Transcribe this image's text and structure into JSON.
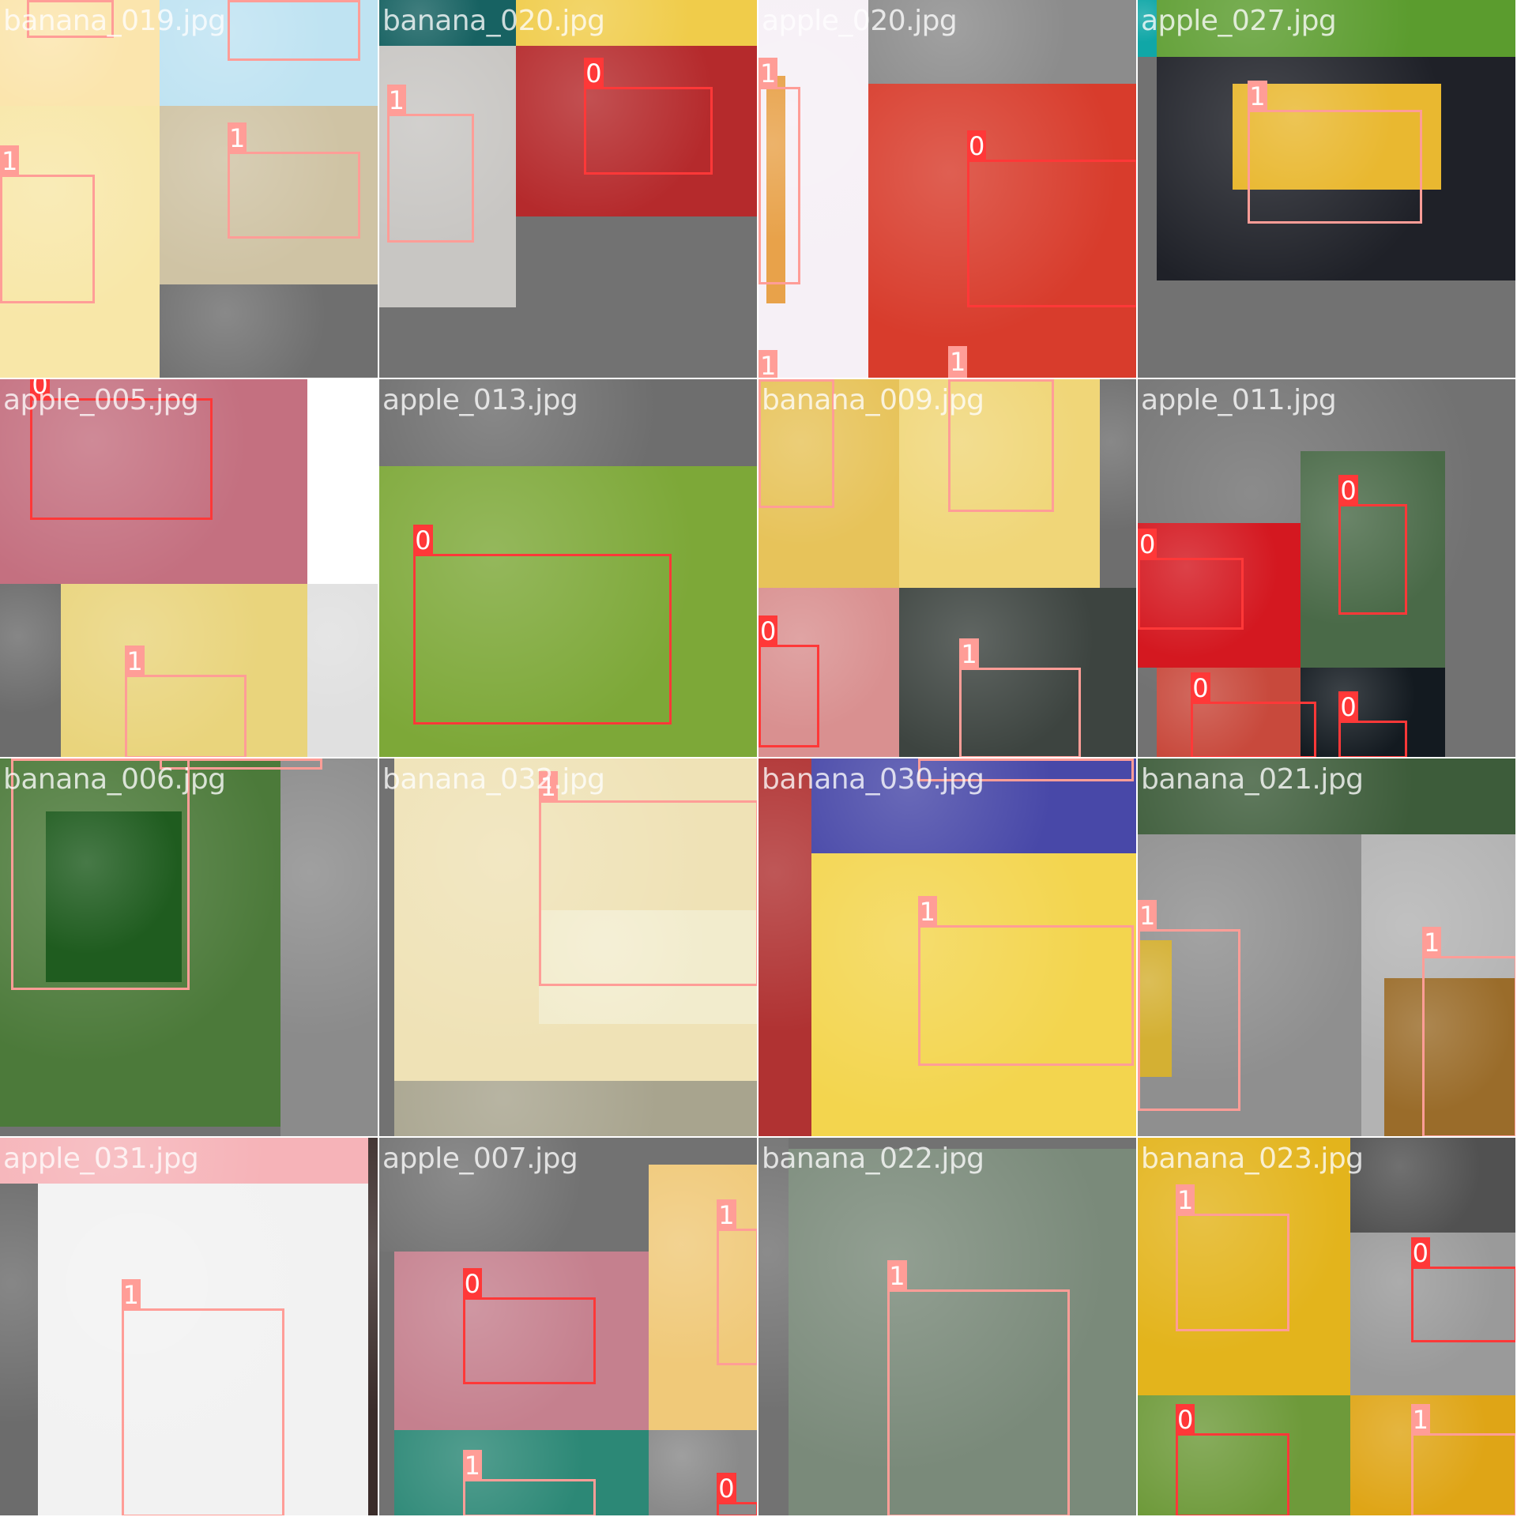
{
  "mosaic": {
    "class_colors": {
      "0": "#ff3838",
      "1": "#ff9d97"
    },
    "tiles": [
      {
        "filename": "banana_019.jpg",
        "photos": [
          [
            "#fbe5ad",
            0,
            0,
            0.42,
            0.28
          ],
          [
            "#bfe3f2",
            0.42,
            0,
            0.58,
            0.28
          ],
          [
            "#f8e7a8",
            0,
            0.28,
            0.42,
            0.72
          ],
          [
            "#cfc3a4",
            0.42,
            0.28,
            0.58,
            0.47
          ],
          [
            "#6f6f6f",
            0.42,
            0.75,
            0.58,
            0.25
          ]
        ],
        "boxes": [
          [
            1,
            0.07,
            0,
            0.23,
            0.1
          ],
          [
            1,
            0.6,
            0,
            0.35,
            0.16
          ],
          [
            1,
            0,
            0.46,
            0.25,
            0.34
          ],
          [
            1,
            0.6,
            0.4,
            0.35,
            0.23
          ]
        ]
      },
      {
        "filename": "banana_020.jpg",
        "photos": [
          [
            "#176262",
            0,
            0,
            0.36,
            0.12
          ],
          [
            "#f0cc4a",
            0.36,
            0,
            0.64,
            0.12
          ],
          [
            "#c8c6c3",
            0,
            0.12,
            0.36,
            0.69
          ],
          [
            "#b52a2c",
            0.36,
            0.12,
            0.64,
            0.45
          ]
        ],
        "boxes": [
          [
            0,
            0.54,
            0.23,
            0.34,
            0.23
          ],
          [
            1,
            0.02,
            0.3,
            0.23,
            0.34
          ]
        ]
      },
      {
        "filename": "apple_020.jpg",
        "photos": [
          [
            "#f6f0f6",
            0,
            0,
            0.29,
            1
          ],
          [
            "#e8a24a",
            0.02,
            0.2,
            0.05,
            0.6
          ],
          [
            "#8c8c8c",
            0.29,
            0,
            0.71,
            0.22
          ],
          [
            "#d83c2c",
            0.29,
            0.22,
            0.71,
            0.78
          ]
        ],
        "boxes": [
          [
            1,
            0,
            0.23,
            0.11,
            0.52
          ],
          [
            1,
            0,
            1.0,
            0.02,
            0.02
          ],
          [
            0,
            0.55,
            0.42,
            0.45,
            0.39
          ],
          [
            1,
            0.5,
            0.99,
            0.03,
            0.02
          ]
        ]
      },
      {
        "filename": "apple_027.jpg",
        "photos": [
          [
            "#5b9c2e",
            0,
            0,
            1,
            0.15
          ],
          [
            "#10a7a7",
            0,
            0,
            0.05,
            0.15
          ],
          [
            "#1f2128",
            0.05,
            0.15,
            0.95,
            0.59
          ],
          [
            "#e9b830",
            0.25,
            0.22,
            0.55,
            0.28
          ]
        ],
        "boxes": [
          [
            1,
            0.29,
            0.29,
            0.46,
            0.3
          ]
        ]
      },
      {
        "filename": "apple_005.jpg",
        "photos": [
          [
            "#c47080",
            0,
            0,
            0.81,
            0.54
          ],
          [
            "#ffffff",
            0.81,
            0,
            0.19,
            0.54
          ],
          [
            "#6c6c6c",
            0,
            0.54,
            0.16,
            0.46
          ],
          [
            "#e9d47c",
            0.16,
            0.54,
            0.65,
            0.46
          ],
          [
            "#e0e0e0",
            0.81,
            0.54,
            0.19,
            0.46
          ]
        ],
        "boxes": [
          [
            0,
            0.08,
            0.05,
            0.48,
            0.32
          ],
          [
            1,
            0.33,
            0.78,
            0.32,
            0.22
          ]
        ]
      },
      {
        "filename": "apple_013.jpg",
        "photos": [
          [
            "#6e6e6e",
            0,
            0,
            1,
            0.23
          ],
          [
            "#7da838",
            0,
            0.23,
            1,
            0.77
          ]
        ],
        "boxes": [
          [
            0,
            0.09,
            0.46,
            0.68,
            0.45
          ]
        ]
      },
      {
        "filename": "banana_009.jpg",
        "photos": [
          [
            "#e7c35a",
            0,
            0,
            0.37,
            0.55
          ],
          [
            "#f0d678",
            0.37,
            0,
            0.53,
            0.55
          ],
          [
            "#6e6e6e",
            0.9,
            0,
            0.1,
            0.55
          ],
          [
            "#d99090",
            0,
            0.55,
            0.37,
            0.45
          ],
          [
            "#3d4440",
            0.37,
            0.55,
            0.63,
            0.45
          ]
        ],
        "boxes": [
          [
            1,
            0,
            0,
            0.2,
            0.34
          ],
          [
            1,
            0.5,
            0,
            0.28,
            0.35
          ],
          [
            0,
            0,
            0.7,
            0.16,
            0.27
          ],
          [
            1,
            0.53,
            0.76,
            0.32,
            0.24
          ]
        ]
      },
      {
        "filename": "apple_011.jpg",
        "photos": [
          [
            "#727272",
            0,
            0,
            1,
            1
          ],
          [
            "#d41820",
            0,
            0.38,
            0.43,
            0.38
          ],
          [
            "#4a6a48",
            0.43,
            0.19,
            0.38,
            0.57
          ],
          [
            "#c8493c",
            0.05,
            0.76,
            0.38,
            0.24
          ],
          [
            "#131a20",
            0.43,
            0.76,
            0.38,
            0.24
          ]
        ],
        "boxes": [
          [
            0,
            0.53,
            0.33,
            0.18,
            0.29
          ],
          [
            0,
            0,
            0.47,
            0.28,
            0.19
          ],
          [
            0,
            0.14,
            0.85,
            0.33,
            0.15
          ],
          [
            0,
            0.53,
            0.9,
            0.18,
            0.1
          ]
        ]
      },
      {
        "filename": "banana_006.jpg",
        "photos": [
          [
            "#4c7a3a",
            0,
            0,
            0.74,
            0.97
          ],
          [
            "#8b8b8b",
            0.74,
            0,
            0.26,
            1
          ],
          [
            "#1f5c1f",
            0.12,
            0.14,
            0.36,
            0.45
          ]
        ],
        "boxes": [
          [
            1,
            0.03,
            0,
            0.47,
            0.61
          ],
          [
            1,
            0.42,
            0,
            0.43,
            0.03
          ]
        ]
      },
      {
        "filename": "banana_032.jpg",
        "photos": [
          [
            "#efe2b6",
            0.04,
            0,
            0.96,
            0.85
          ],
          [
            "#a8a48e",
            0.04,
            0.85,
            0.96,
            0.15
          ],
          [
            "#f2eccd",
            0.42,
            0.4,
            0.58,
            0.3
          ]
        ],
        "boxes": [
          [
            1,
            0.42,
            0.11,
            0.58,
            0.49
          ]
        ]
      },
      {
        "filename": "banana_030.jpg",
        "photos": [
          [
            "#b03232",
            0,
            0,
            0.14,
            1
          ],
          [
            "#4848a8",
            0.14,
            0,
            0.86,
            0.25
          ],
          [
            "#f3d54e",
            0.14,
            0.25,
            0.86,
            0.75
          ]
        ],
        "boxes": [
          [
            1,
            0.42,
            0.44,
            0.57,
            0.37
          ],
          [
            1,
            0.42,
            0,
            0.57,
            0.06
          ]
        ]
      },
      {
        "filename": "banana_021.jpg",
        "photos": [
          [
            "#3d5c3a",
            0,
            0,
            1,
            0.2
          ],
          [
            "#8f8f8f",
            0,
            0.2,
            0.59,
            0.8
          ],
          [
            "#b3b3b3",
            0.59,
            0.2,
            0.41,
            0.8
          ],
          [
            "#d4b033",
            0,
            0.48,
            0.09,
            0.36
          ],
          [
            "#9a6c2a",
            0.65,
            0.58,
            0.35,
            0.42
          ]
        ],
        "boxes": [
          [
            1,
            0,
            0.45,
            0.27,
            0.48
          ],
          [
            1,
            0.75,
            0.52,
            0.25,
            0.48
          ]
        ]
      },
      {
        "filename": "apple_031.jpg",
        "photos": [
          [
            "#f6b3b8",
            0,
            0,
            0.97,
            0.12
          ],
          [
            "#6c6c6c",
            0,
            0.12,
            0.1,
            0.88
          ],
          [
            "#f2f2f2",
            0.1,
            0.12,
            0.87,
            0.88
          ],
          [
            "#3a2c2a",
            0.97,
            0,
            0.03,
            1
          ]
        ],
        "boxes": [
          [
            1,
            0.32,
            0.45,
            0.43,
            0.55
          ]
        ]
      },
      {
        "filename": "apple_007.jpg",
        "photos": [
          [
            "#727272",
            0,
            0,
            0.71,
            0.3
          ],
          [
            "#f0c979",
            0.71,
            0.07,
            0.29,
            0.7
          ],
          [
            "#c5808e",
            0.04,
            0.3,
            0.67,
            0.47
          ],
          [
            "#2c8876",
            0.04,
            0.77,
            0.67,
            0.23
          ],
          [
            "#8a8a8a",
            0.71,
            0.77,
            0.29,
            0.23
          ]
        ],
        "boxes": [
          [
            0,
            0.22,
            0.42,
            0.35,
            0.23
          ],
          [
            1,
            0.89,
            0.24,
            0.11,
            0.36
          ],
          [
            1,
            0.22,
            0.9,
            0.35,
            0.1
          ],
          [
            0,
            0.89,
            0.96,
            0.11,
            0.04
          ]
        ]
      },
      {
        "filename": "banana_022.jpg",
        "photos": [
          [
            "#727272",
            0,
            0,
            0.08,
            1
          ],
          [
            "#7a8a7a",
            0.08,
            0.03,
            0.92,
            0.97
          ]
        ],
        "boxes": [
          [
            1,
            0.34,
            0.4,
            0.48,
            0.6
          ]
        ]
      },
      {
        "filename": "banana_023.jpg",
        "photos": [
          [
            "#e3b41c",
            0,
            0,
            0.56,
            0.68
          ],
          [
            "#515151",
            0.56,
            0,
            0.44,
            0.25
          ],
          [
            "#9a9a9a",
            0.56,
            0.25,
            0.44,
            0.43
          ],
          [
            "#6e9a3a",
            0,
            0.68,
            0.56,
            0.32
          ],
          [
            "#dfa516",
            0.56,
            0.68,
            0.44,
            0.32
          ]
        ],
        "boxes": [
          [
            1,
            0.1,
            0.2,
            0.3,
            0.31
          ],
          [
            0,
            0.72,
            0.34,
            0.28,
            0.2
          ],
          [
            0,
            0.1,
            0.78,
            0.3,
            0.22
          ],
          [
            1,
            0.72,
            0.78,
            0.28,
            0.22
          ]
        ]
      }
    ]
  }
}
